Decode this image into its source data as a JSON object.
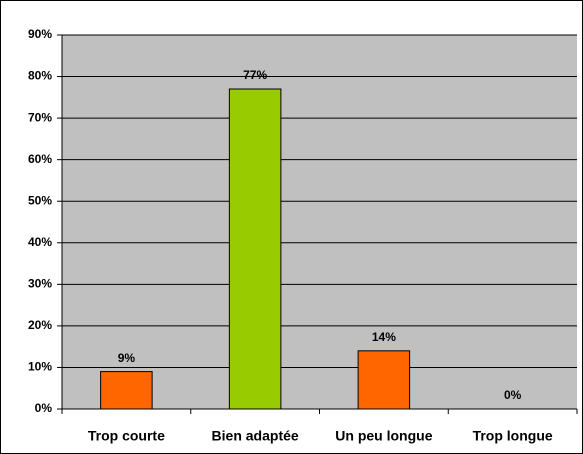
{
  "chart_data": {
    "type": "bar",
    "categories": [
      "Trop courte",
      "Bien adaptée",
      "Un peu longue",
      "Trop longue"
    ],
    "values": [
      9,
      77,
      14,
      0
    ],
    "value_labels": [
      "9%",
      "77%",
      "14%",
      "0%"
    ],
    "colors": [
      "#ff6600",
      "#99cc00",
      "#ff6600",
      "#ff6600"
    ],
    "ylim": [
      0,
      90
    ],
    "yticks": [
      {
        "value": 0,
        "label": "0%"
      },
      {
        "value": 10,
        "label": "10%"
      },
      {
        "value": 20,
        "label": "20%"
      },
      {
        "value": 30,
        "label": "30%"
      },
      {
        "value": 40,
        "label": "40%"
      },
      {
        "value": 50,
        "label": "50%"
      },
      {
        "value": 60,
        "label": "60%"
      },
      {
        "value": 70,
        "label": "70%"
      },
      {
        "value": 80,
        "label": "80%"
      },
      {
        "value": 90,
        "label": "90%"
      }
    ],
    "grid": true,
    "background": "#c0c0c0"
  }
}
